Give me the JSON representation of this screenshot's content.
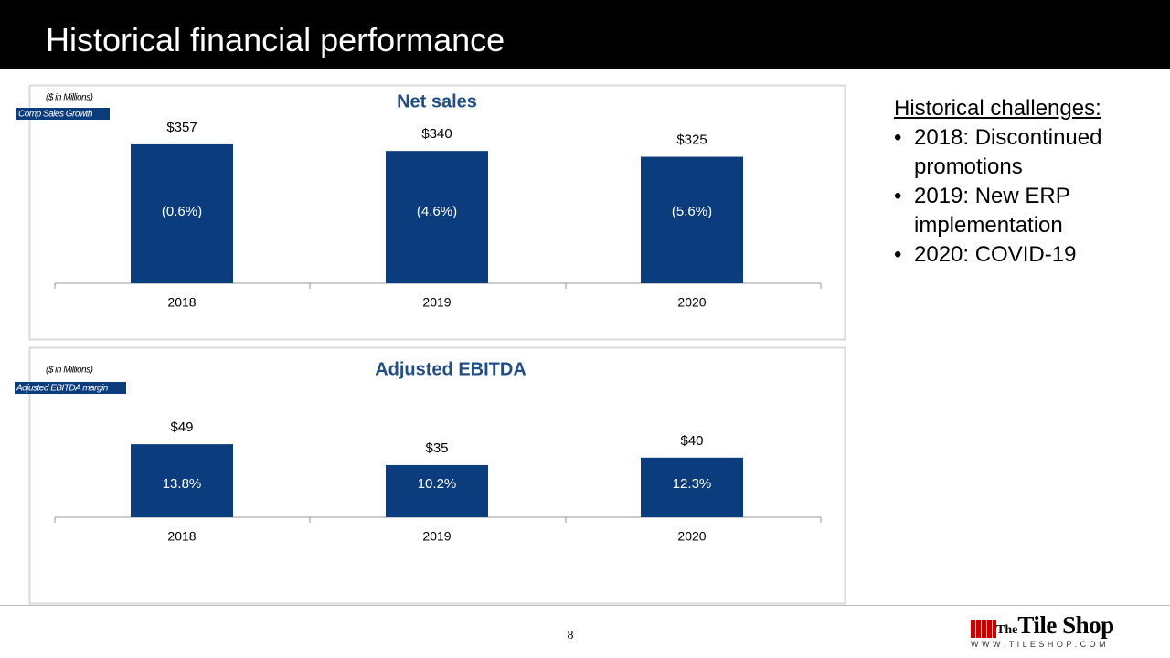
{
  "title": "Historical financial performance",
  "chart_data": [
    {
      "type": "bar",
      "title": "Net sales",
      "unit_note": "($ in Millions)",
      "categories": [
        "2018",
        "2019",
        "2020"
      ],
      "values": [
        357,
        340,
        325
      ],
      "value_labels": [
        "$357",
        "$340",
        "$325"
      ],
      "color": "#0b3c7d",
      "secondary": {
        "name": "Comp Sales Growth",
        "values": [
          -0.6,
          -4.6,
          -5.6
        ],
        "value_labels": [
          "(0.6%)",
          "(4.6%)",
          "(5.6%)"
        ]
      }
    },
    {
      "type": "bar",
      "title": "Adjusted EBITDA",
      "unit_note": "($ in Millions)",
      "categories": [
        "2018",
        "2019",
        "2020"
      ],
      "values": [
        49,
        35,
        40
      ],
      "value_labels": [
        "$49",
        "$35",
        "$40"
      ],
      "color": "#0b3c7d",
      "secondary": {
        "name": "Adjusted EBITDA margin",
        "values": [
          13.8,
          10.2,
          12.3
        ],
        "value_labels": [
          "13.8%",
          "10.2%",
          "12.3%"
        ]
      }
    }
  ],
  "challenges": {
    "heading": "Historical challenges:",
    "items": [
      "2018: Discontinued promotions",
      "2019: New ERP implementation",
      "2020: COVID-19"
    ]
  },
  "page_number": "8",
  "logo": {
    "prefix": "The",
    "name": "Tile Shop",
    "url": "W W W . T I L E S H O P . C O M"
  }
}
